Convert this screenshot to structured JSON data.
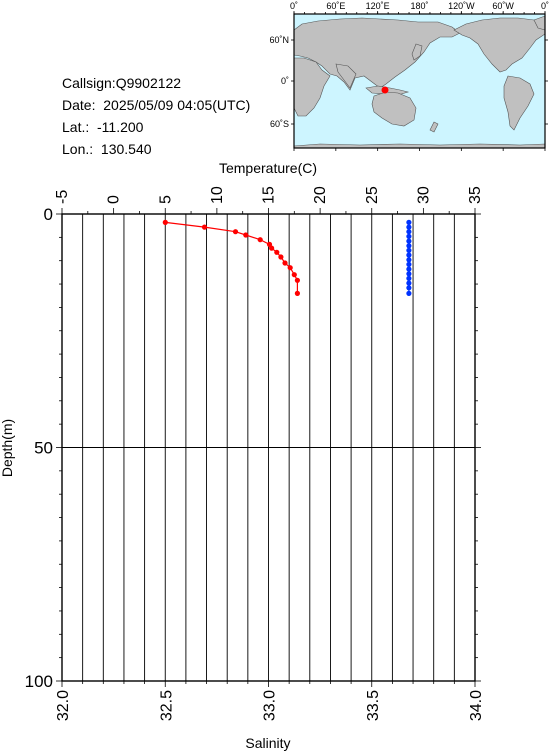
{
  "info": {
    "callsign": "Callsign:Q9902122",
    "date": "Date:  2025/05/09 04:05(UTC)",
    "lat": "Lat.:  -11.200",
    "lon": "Lon.:  130.540"
  },
  "map": {
    "top_ticks": [
      "0˚",
      "60˚E",
      "120˚E",
      "180˚",
      "120˚W",
      "60˚W",
      "0˚"
    ],
    "left_ticks": [
      "60˚N",
      "0˚",
      "60˚S"
    ],
    "ocean_color": "#cdf5ff",
    "land_color": "#c0c0c0",
    "marker_color": "#ff0000"
  },
  "chart_data": {
    "type": "line",
    "top_axis_label": "Temperature(C)",
    "bottom_axis_label": "Salinity",
    "ylabel": "Depth(m)",
    "temperature_range": [
      -5,
      35
    ],
    "temperature_ticks": [
      "-5",
      "0",
      "5",
      "10",
      "15",
      "20",
      "25",
      "30",
      "35"
    ],
    "salinity_range": [
      32.0,
      34.0
    ],
    "salinity_ticks": [
      "32.0",
      "32.5",
      "33.0",
      "33.5",
      "34.0"
    ],
    "depth_range": [
      0,
      100
    ],
    "depth_ticks": [
      "0",
      "50",
      "100"
    ],
    "series": [
      {
        "name": "Temperature",
        "color": "#ff0000",
        "axis": "temperature",
        "depth": [
          1.8,
          2.8,
          3.8,
          4.5,
          5.5,
          6.5,
          7.3,
          8.2,
          9.2,
          10.5,
          11.5,
          13.0,
          14.2,
          17.0
        ],
        "value": [
          5.0,
          8.8,
          11.8,
          12.8,
          14.2,
          15.1,
          15.3,
          15.8,
          16.2,
          16.6,
          17.1,
          17.5,
          17.8,
          17.8
        ]
      },
      {
        "name": "Salinity",
        "color": "#0033ff",
        "axis": "salinity",
        "depth": [
          1.8,
          2.8,
          3.8,
          4.8,
          5.8,
          6.8,
          7.8,
          8.8,
          9.8,
          10.8,
          11.8,
          12.8,
          13.8,
          14.8,
          15.8,
          17.0
        ],
        "value": [
          33.68,
          33.68,
          33.68,
          33.68,
          33.68,
          33.68,
          33.68,
          33.68,
          33.68,
          33.68,
          33.68,
          33.68,
          33.68,
          33.68,
          33.68,
          33.68
        ]
      }
    ]
  }
}
